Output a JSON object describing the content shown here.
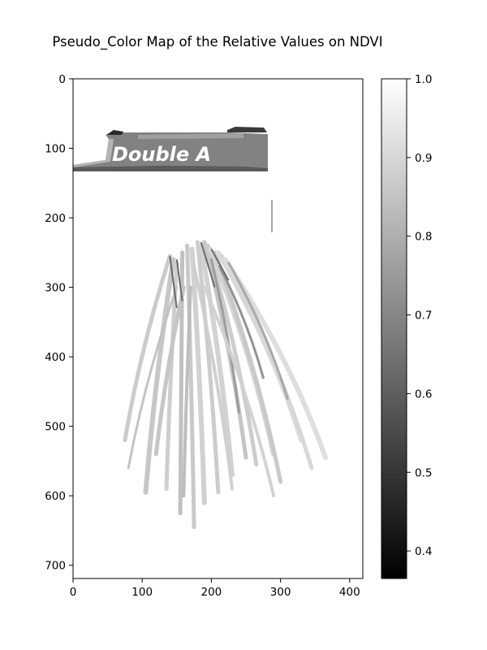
{
  "chart_data": {
    "type": "heatmap",
    "title": "Pseudo_Color Map of the Relative Values on NDVI",
    "colormap": "gray",
    "x_ticks": [
      0,
      100,
      200,
      300,
      400
    ],
    "y_ticks": [
      0,
      100,
      200,
      300,
      400,
      500,
      600,
      700
    ],
    "xlim": [
      0,
      419
    ],
    "ylim": [
      719,
      0
    ],
    "colorbar": {
      "range": [
        0.365,
        1.0
      ],
      "ticks": [
        "0.4",
        "0.5",
        "0.6",
        "0.7",
        "0.8",
        "0.9",
        "1.0"
      ],
      "tick_values": [
        0.4,
        0.5,
        0.6,
        0.7,
        0.8,
        0.9,
        1.0
      ],
      "placement": "right"
    },
    "image_text": "Double A"
  }
}
